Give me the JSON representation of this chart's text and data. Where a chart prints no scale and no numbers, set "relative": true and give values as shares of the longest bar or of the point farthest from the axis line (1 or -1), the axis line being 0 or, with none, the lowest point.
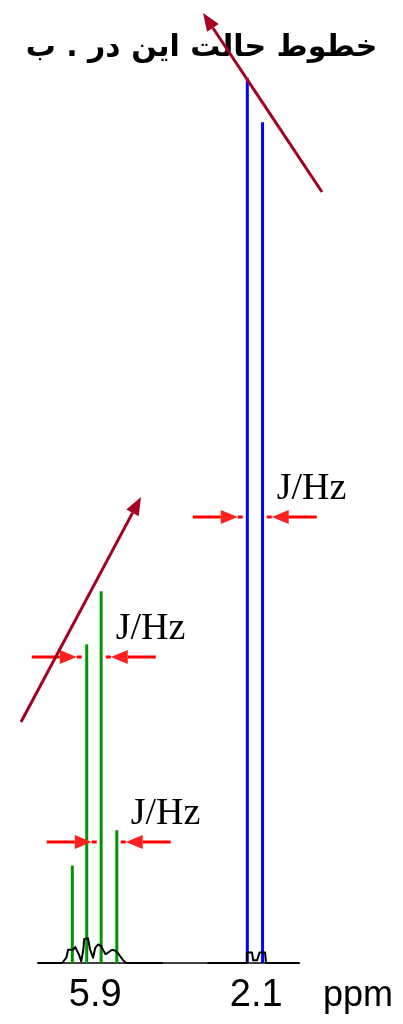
{
  "chart_data": {
    "type": "bar",
    "title": "خطوط حالت این در . ب",
    "relative": true,
    "xlim": [
      7.25,
      1.09
    ],
    "xticks": [
      5.9,
      2.1
    ],
    "xlabel": "ppm",
    "series": [
      {
        "color": "#009600",
        "x": [
          6.44,
          6.1,
          5.76,
          5.39
        ],
        "values": [
          0.11,
          0.36,
          0.42,
          0.15
        ]
      },
      {
        "color": "#0000ff",
        "x": [
          2.31,
          1.95
        ],
        "values": [
          1.0,
          0.95
        ]
      },
      {
        "type": "line",
        "color": "#000000",
        "x": [
          7.25,
          6.68,
          6.58,
          6.54,
          6.42,
          6.37,
          6.28,
          6.23,
          6.18,
          6.16,
          6.07,
          6.02,
          5.95,
          5.9,
          5.83,
          5.76,
          5.66,
          5.62,
          5.5,
          5.43,
          5.36,
          5.24,
          5.17,
          4.32
        ],
        "values": [
          0,
          0,
          0.006,
          0.015,
          0.015,
          0.018,
          0.009,
          0.002,
          0.015,
          0.027,
          0.028,
          0.015,
          0.006,
          0.017,
          0.021,
          0.019,
          0.01,
          0.011,
          0.015,
          0.014,
          0.011,
          0.003,
          0,
          0
        ]
      },
      {
        "type": "line",
        "color": "#000000",
        "x": [
          3.23,
          2.32,
          2.32,
          2.2,
          2.17,
          2.08,
          2.02,
          1.89,
          1.87,
          1.09
        ],
        "values": [
          0,
          0,
          0.012,
          0.012,
          0.003,
          0.003,
          0.012,
          0.012,
          0,
          0
        ]
      }
    ],
    "annotations": [
      "J/Hz",
      "J/Hz",
      "J/Hz"
    ]
  }
}
